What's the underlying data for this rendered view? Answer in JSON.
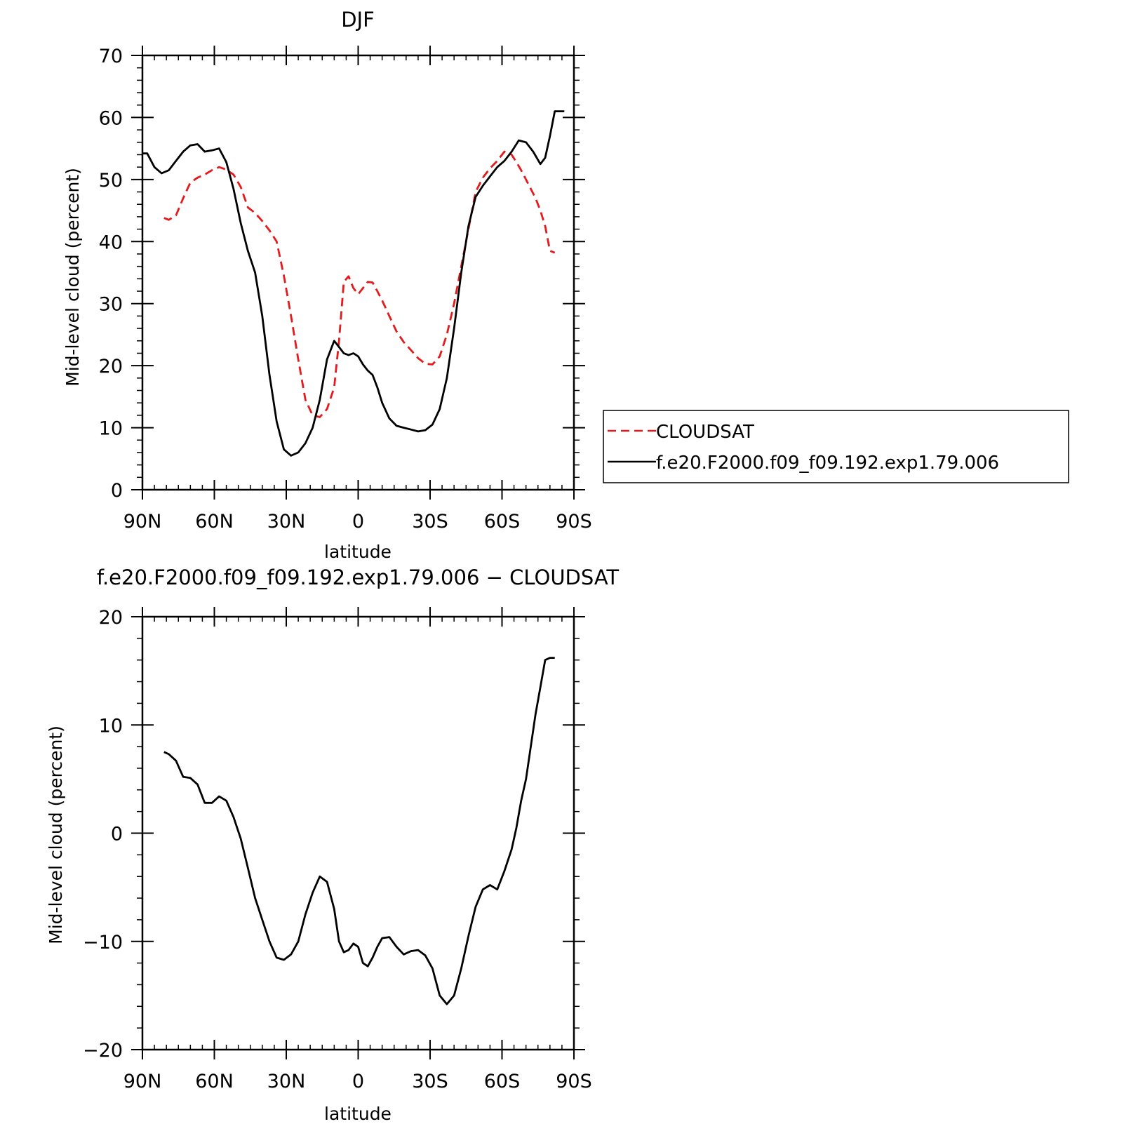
{
  "chart_data": [
    {
      "type": "line",
      "title": "DJF",
      "xlabel": "latitude",
      "ylabel": "Mid-level cloud (percent)",
      "xlim": [
        90,
        -90
      ],
      "ylim": [
        0,
        70
      ],
      "x_ticks": [
        {
          "value": 90,
          "label": "90N"
        },
        {
          "value": 60,
          "label": "60N"
        },
        {
          "value": 30,
          "label": "30N"
        },
        {
          "value": 0,
          "label": "0"
        },
        {
          "value": -30,
          "label": "30S"
        },
        {
          "value": -60,
          "label": "60S"
        },
        {
          "value": -90,
          "label": "90S"
        }
      ],
      "y_ticks": [
        0,
        10,
        20,
        30,
        40,
        50,
        60,
        70
      ],
      "legend_position": "right",
      "series": [
        {
          "name": "CLOUDSAT",
          "color": "#e41a1c",
          "dash": "dashed",
          "x": [
            81,
            79,
            76,
            73,
            70,
            67,
            64,
            61,
            58,
            55,
            52,
            49,
            46,
            43,
            40,
            37,
            34,
            31,
            28,
            25,
            22,
            19,
            16,
            13,
            10,
            8,
            6,
            4,
            2,
            0,
            -2,
            -4,
            -6,
            -8,
            -10,
            -13,
            -16,
            -19,
            -22,
            -25,
            -28,
            -31,
            -34,
            -37,
            -40,
            -43,
            -46,
            -49,
            -52,
            -55,
            -58,
            -61,
            -64,
            -66,
            -68,
            -70,
            -72,
            -74,
            -76,
            -78,
            -80,
            -82
          ],
          "y": [
            43.8,
            43.5,
            44.2,
            47.0,
            49.5,
            50.3,
            50.8,
            51.5,
            52.0,
            51.6,
            50.8,
            48.8,
            45.5,
            44.6,
            43.3,
            41.8,
            40.0,
            34.5,
            28.0,
            21.0,
            14.5,
            12.0,
            11.7,
            13.0,
            16.5,
            24.0,
            33.5,
            34.4,
            32.5,
            31.5,
            32.5,
            33.5,
            33.4,
            32.0,
            30.5,
            28.0,
            25.5,
            23.8,
            22.5,
            21.2,
            20.3,
            20.2,
            21.5,
            25.0,
            30.0,
            36.0,
            42.0,
            48.0,
            50.3,
            51.8,
            53.0,
            54.5,
            54.0,
            52.8,
            51.5,
            50.0,
            48.5,
            47.0,
            45.0,
            42.5,
            38.5,
            38.2
          ]
        },
        {
          "name": "f.e20.F2000.f09_f09.192.exp1.79.006",
          "color": "#000000",
          "dash": "solid",
          "x": [
            90,
            88,
            85,
            82,
            79,
            76,
            73,
            70,
            67,
            64,
            61,
            58,
            55,
            52,
            49,
            46,
            43,
            40,
            37,
            34,
            31,
            28,
            25,
            22,
            19,
            16,
            13,
            10,
            8,
            6,
            4,
            2,
            0,
            -2,
            -4,
            -6,
            -8,
            -10,
            -13,
            -16,
            -19,
            -22,
            -25,
            -28,
            -31,
            -34,
            -37,
            -40,
            -43,
            -46,
            -49,
            -52,
            -55,
            -58,
            -61,
            -64,
            -67,
            -70,
            -73,
            -76,
            -78,
            -80,
            -82,
            -84,
            -86
          ],
          "y": [
            54.2,
            54.2,
            52.0,
            51.0,
            51.5,
            53.0,
            54.5,
            55.5,
            55.7,
            54.5,
            54.7,
            55.0,
            52.8,
            48.5,
            43.0,
            38.5,
            35.0,
            28.0,
            18.5,
            11.0,
            6.5,
            5.5,
            6.0,
            7.5,
            10.0,
            14.5,
            21.0,
            24.0,
            23.0,
            22.0,
            21.7,
            22.0,
            21.5,
            20.2,
            19.2,
            18.5,
            16.5,
            14.0,
            11.5,
            10.3,
            10.0,
            9.7,
            9.4,
            9.6,
            10.5,
            13.0,
            18.0,
            26.0,
            35.0,
            42.5,
            47.2,
            49.0,
            50.5,
            52.0,
            53.0,
            54.5,
            56.3,
            56.0,
            54.5,
            52.5,
            53.5,
            57.0,
            61.0,
            61.0,
            61.0
          ]
        }
      ]
    },
    {
      "type": "line",
      "title": "f.e20.F2000.f09_f09.192.exp1.79.006 − CLOUDSAT",
      "xlabel": "latitude",
      "ylabel": "Mid-level cloud (percent)",
      "xlim": [
        90,
        -90
      ],
      "ylim": [
        -20,
        20
      ],
      "x_ticks": [
        {
          "value": 90,
          "label": "90N"
        },
        {
          "value": 60,
          "label": "60N"
        },
        {
          "value": 30,
          "label": "30N"
        },
        {
          "value": 0,
          "label": "0"
        },
        {
          "value": -30,
          "label": "30S"
        },
        {
          "value": -60,
          "label": "60S"
        },
        {
          "value": -90,
          "label": "90S"
        }
      ],
      "y_ticks": [
        {
          "value": -20,
          "label": "−20"
        },
        {
          "value": -10,
          "label": "−10"
        },
        {
          "value": 0,
          "label": "0"
        },
        {
          "value": 10,
          "label": "10"
        },
        {
          "value": 20,
          "label": "20"
        }
      ],
      "series": [
        {
          "color": "#000000",
          "dash": "solid",
          "x": [
            81,
            79,
            76,
            73,
            70,
            67,
            64,
            61,
            58,
            55,
            52,
            49,
            46,
            43,
            40,
            37,
            34,
            31,
            28,
            25,
            22,
            19,
            16,
            13,
            10,
            8,
            6,
            4,
            2,
            0,
            -2,
            -4,
            -6,
            -8,
            -10,
            -13,
            -16,
            -19,
            -22,
            -25,
            -28,
            -31,
            -34,
            -37,
            -40,
            -43,
            -46,
            -49,
            -52,
            -55,
            -58,
            -61,
            -64,
            -66,
            -68,
            -70,
            -72,
            -74,
            -76,
            -78,
            -80,
            -82
          ],
          "y": [
            7.5,
            7.3,
            6.7,
            5.2,
            5.1,
            4.5,
            2.8,
            2.8,
            3.4,
            3.0,
            1.5,
            -0.5,
            -3.2,
            -6.0,
            -8.0,
            -10.0,
            -11.5,
            -11.7,
            -11.2,
            -10.0,
            -7.5,
            -5.5,
            -4.0,
            -4.5,
            -7.0,
            -10.0,
            -11.0,
            -10.8,
            -10.2,
            -10.5,
            -12.0,
            -12.3,
            -11.5,
            -10.5,
            -9.7,
            -9.6,
            -10.5,
            -11.2,
            -10.9,
            -10.8,
            -11.3,
            -12.5,
            -15.0,
            -15.8,
            -15.0,
            -12.5,
            -9.5,
            -6.8,
            -5.2,
            -4.8,
            -5.2,
            -3.5,
            -1.5,
            0.5,
            3.0,
            5.0,
            8.0,
            11.0,
            13.5,
            16.0,
            16.2,
            16.2
          ]
        }
      ]
    }
  ]
}
